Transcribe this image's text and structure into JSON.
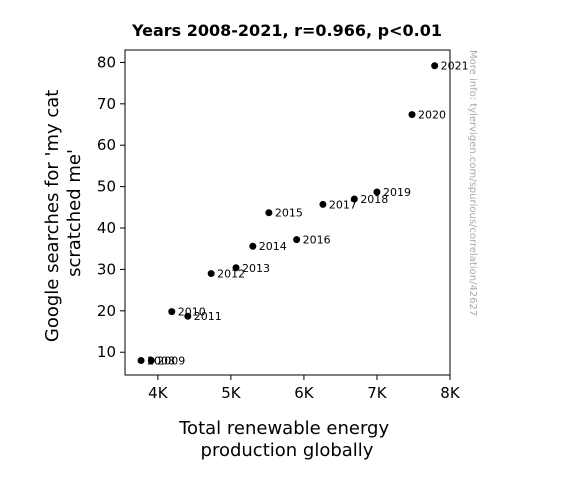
{
  "chart_data": {
    "type": "scatter",
    "title": "Years 2008-2021, r=0.966, p<0.01",
    "xlabel": [
      "Total renewable energy",
      "production globally"
    ],
    "ylabel": [
      "Google searches for 'my cat",
      "scratched me'"
    ],
    "xlim": [
      3550,
      8000
    ],
    "ylim": [
      4.5,
      83
    ],
    "x_ticks": [
      {
        "value": 4000,
        "label": "4K"
      },
      {
        "value": 5000,
        "label": "5K"
      },
      {
        "value": 6000,
        "label": "6K"
      },
      {
        "value": 7000,
        "label": "7K"
      },
      {
        "value": 8000,
        "label": "8K"
      }
    ],
    "y_ticks": [
      {
        "value": 10,
        "label": "10"
      },
      {
        "value": 20,
        "label": "20"
      },
      {
        "value": 30,
        "label": "30"
      },
      {
        "value": 40,
        "label": "40"
      },
      {
        "value": 50,
        "label": "50"
      },
      {
        "value": 60,
        "label": "60"
      },
      {
        "value": 70,
        "label": "70"
      },
      {
        "value": 80,
        "label": "80"
      }
    ],
    "grid": false,
    "marker_color": "#000000",
    "points": [
      {
        "label": "2008",
        "x": 3770,
        "y": 8.0
      },
      {
        "label": "2009",
        "x": 3910,
        "y": 8.0
      },
      {
        "label": "2010",
        "x": 4190,
        "y": 19.8
      },
      {
        "label": "2011",
        "x": 4410,
        "y": 18.7
      },
      {
        "label": "2012",
        "x": 4730,
        "y": 29.0
      },
      {
        "label": "2013",
        "x": 5070,
        "y": 30.4
      },
      {
        "label": "2014",
        "x": 5300,
        "y": 35.6
      },
      {
        "label": "2015",
        "x": 5520,
        "y": 43.7
      },
      {
        "label": "2016",
        "x": 5900,
        "y": 37.2
      },
      {
        "label": "2017",
        "x": 6260,
        "y": 45.7
      },
      {
        "label": "2018",
        "x": 6690,
        "y": 47.0
      },
      {
        "label": "2019",
        "x": 7000,
        "y": 48.7
      },
      {
        "label": "2020",
        "x": 7480,
        "y": 67.4
      },
      {
        "label": "2021",
        "x": 7790,
        "y": 79.2
      }
    ]
  },
  "watermark": "More info: tylervigen.com/spurious/correlation/42627"
}
